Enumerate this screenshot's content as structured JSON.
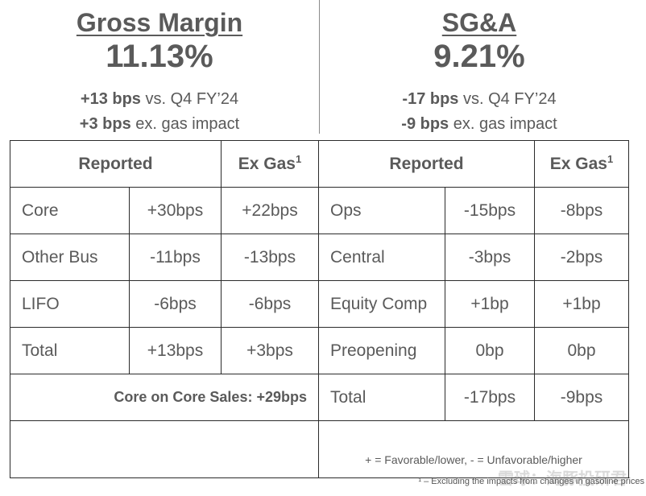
{
  "left": {
    "title": "Gross Margin",
    "value": "11.13%",
    "line1_bold": "+13 bps",
    "line1_rest": " vs. Q4 FY’24",
    "line2_bold": "+3 bps",
    "line2_rest": " ex. gas impact"
  },
  "right": {
    "title": "SG&A",
    "value": "9.21%",
    "line1_bold": "-17 bps",
    "line1_rest": " vs. Q4 FY’24",
    "line2_bold": "-9 bps",
    "line2_rest": " ex. gas impact"
  },
  "table": {
    "headers": {
      "reported_left": "Reported",
      "exgas_left": "Ex Gas",
      "exgas_sup": "1",
      "reported_right": "Reported",
      "exgas_right": "Ex Gas"
    },
    "rows": [
      {
        "gm_label": "Core",
        "gm_reported": "+30bps",
        "gm_exgas": "+22bps",
        "sga_label": "Ops",
        "sga_reported": "-15bps",
        "sga_exgas": "-8bps"
      },
      {
        "gm_label": "Other Bus",
        "gm_reported": "-11bps",
        "gm_exgas": "-13bps",
        "sga_label": "Central",
        "sga_reported": "-3bps",
        "sga_exgas": "-2bps"
      },
      {
        "gm_label": "LIFO",
        "gm_reported": "-6bps",
        "gm_exgas": "-6bps",
        "sga_label": "Equity Comp",
        "sga_reported": "+1bp",
        "sga_exgas": "+1bp"
      },
      {
        "gm_label": "Total",
        "gm_reported": "+13bps",
        "gm_exgas": "+3bps",
        "sga_label": "Preopening",
        "sga_reported": "0bp",
        "sga_exgas": "0bp"
      }
    ],
    "core_on_core": "Core on Core Sales: +29bps",
    "sga_total_label": "Total",
    "sga_total_reported": "-17bps",
    "sga_total_exgas": "-9bps",
    "legend": "+ = Favorable/lower, - = Unfavorable/higher"
  },
  "footnote": "¹ – Excluding the impacts from changes in gasoline prices",
  "watermark": "雪球：海豚投研君"
}
